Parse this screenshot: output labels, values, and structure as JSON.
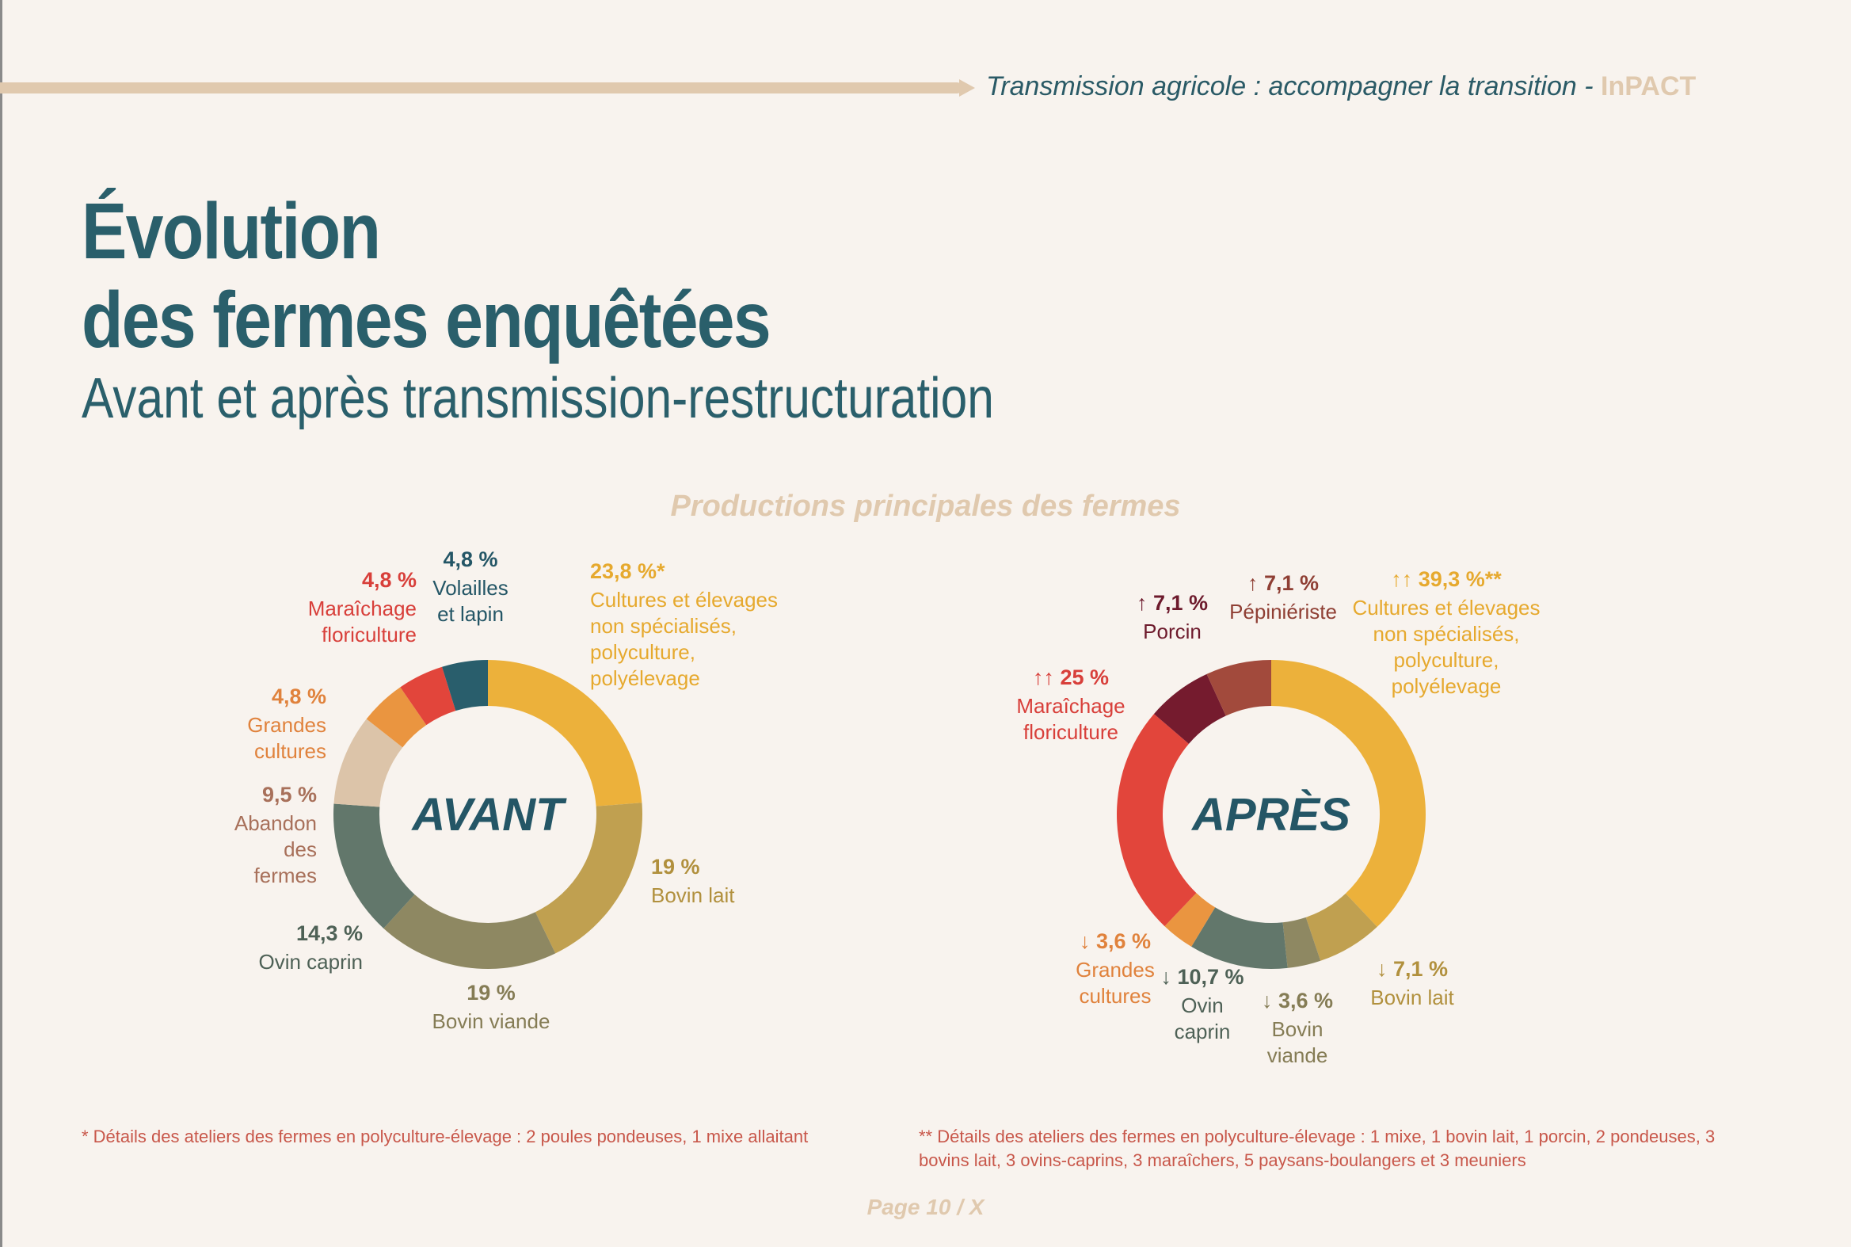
{
  "header": {
    "text": "Transmission agricole : accompagner la transition - ",
    "brand": "InPACT"
  },
  "title": {
    "line1": "Évolution",
    "line2": "des fermes enquêtées",
    "subtitle": "Avant et après transmission-restructuration"
  },
  "colors": {
    "background": "#f8f3ee",
    "title": "#2a5f6b",
    "accent_sand": "#e0c9ae",
    "footnote": "#c8574a"
  },
  "chart_data": [
    {
      "type": "pie",
      "title": "Productions principales des fermes",
      "center_label": "AVANT",
      "slices": [
        {
          "name": "Cultures et élevages non spécialisés, polyculture, polyélevage",
          "value": 23.8,
          "percent_label": "23,8 %*",
          "label_lines": [
            "Cultures et élevages",
            "non spécialisés,",
            "polyculture,",
            "polyélevage"
          ],
          "color": "#ecb13b",
          "label_color": "#e6a92e"
        },
        {
          "name": "Bovin lait",
          "value": 19,
          "percent_label": "19 %",
          "label_lines": [
            "Bovin lait"
          ],
          "color": "#c0a050",
          "label_color": "#b1903d"
        },
        {
          "name": "Bovin viande",
          "value": 19,
          "percent_label": "19 %",
          "label_lines": [
            "Bovin viande"
          ],
          "color": "#8e8862",
          "label_color": "#857c55"
        },
        {
          "name": "Ovin caprin",
          "value": 14.3,
          "percent_label": "14,3 %",
          "label_lines": [
            "Ovin caprin"
          ],
          "color": "#62776b",
          "label_color": "#4e6156"
        },
        {
          "name": "Abandon des fermes",
          "value": 9.5,
          "percent_label": "9,5 %",
          "label_lines": [
            "Abandon",
            "des",
            "fermes"
          ],
          "color": "#dcc4a9",
          "label_color": "#a8705a"
        },
        {
          "name": "Grandes cultures",
          "value": 4.8,
          "percent_label": "4,8 %",
          "label_lines": [
            "Grandes",
            "cultures"
          ],
          "color": "#ea9540",
          "label_color": "#e0823c"
        },
        {
          "name": "Maraîchage floriculture",
          "value": 4.8,
          "percent_label": "4,8 %",
          "label_lines": [
            "Maraîchage",
            "floriculture"
          ],
          "color": "#e2453b",
          "label_color": "#d83f3a"
        },
        {
          "name": "Volailles et lapin",
          "value": 4.8,
          "percent_label": "4,8 %",
          "label_lines": [
            "Volailles",
            "et lapin"
          ],
          "color": "#295e6c",
          "label_color": "#245666"
        }
      ]
    },
    {
      "type": "pie",
      "title": "Productions principales des fermes",
      "center_label": "APRÈS",
      "slices": [
        {
          "name": "Cultures et élevages non spécialisés, polyculture, polyélevage",
          "value": 39.3,
          "percent_label": "↑↑ 39,3 %**",
          "label_lines": [
            "Cultures et élevages",
            "non spécialisés,",
            "polyculture,",
            "polyélevage"
          ],
          "color": "#ecb13b",
          "label_color": "#e6a92e"
        },
        {
          "name": "Bovin lait",
          "value": 7.1,
          "percent_label": "↓ 7,1 %",
          "label_lines": [
            "Bovin lait"
          ],
          "color": "#c0a050",
          "label_color": "#b1903d"
        },
        {
          "name": "Bovin viande",
          "value": 3.6,
          "percent_label": "↓ 3,6 %",
          "label_lines": [
            "Bovin",
            "viande"
          ],
          "color": "#8e8862",
          "label_color": "#857c55"
        },
        {
          "name": "Ovin caprin",
          "value": 10.7,
          "percent_label": "↓ 10,7 %",
          "label_lines": [
            "Ovin",
            "caprin"
          ],
          "color": "#62776b",
          "label_color": "#4e6156"
        },
        {
          "name": "Grandes cultures",
          "value": 3.6,
          "percent_label": "↓ 3,6 %",
          "label_lines": [
            "Grandes",
            "cultures"
          ],
          "color": "#ea9540",
          "label_color": "#e0823c"
        },
        {
          "name": "Maraîchage floriculture",
          "value": 25,
          "percent_label": "↑↑ 25 %",
          "label_lines": [
            "Maraîchage",
            "floriculture"
          ],
          "color": "#e2453b",
          "label_color": "#d83f3a"
        },
        {
          "name": "Porcin",
          "value": 7.1,
          "percent_label": "↑ 7,1 %",
          "label_lines": [
            "Porcin"
          ],
          "color": "#751b2e",
          "label_color": "#6d1a2c"
        },
        {
          "name": "Pépiniériste",
          "value": 7.1,
          "percent_label": "↑ 7,1 %",
          "label_lines": [
            "Pépiniériste"
          ],
          "color": "#a24a3c",
          "label_color": "#8f3f34"
        }
      ]
    }
  ],
  "footnotes": {
    "avant": "* Détails des ateliers des fermes en polyculture-élevage : 2 poules pondeuses, 1 mixe allaitant",
    "apres": "** Détails des ateliers des fermes en polyculture-élevage : 1 mixe, 1 bovin lait, 1 porcin, 2 pondeuses, 3 bovins lait, 3 ovins-caprins, 3 maraîchers, 5 paysans-boulangers et 3 meuniers"
  },
  "page": "Page 10 / X"
}
